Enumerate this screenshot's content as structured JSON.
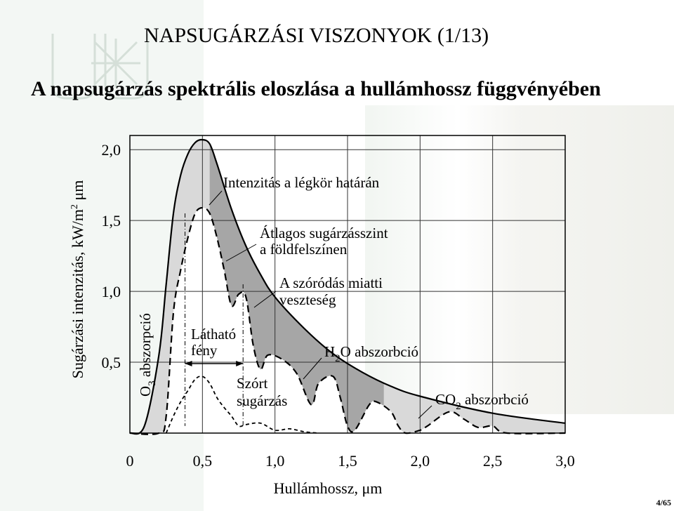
{
  "header": {
    "title": "NAPSUGÁRZÁSI VISZONYOK (1/13)",
    "subtitle": "A napsugárzás spektrális eloszlása a hullámhossz függvényében"
  },
  "footer": {
    "page": "4/65"
  },
  "colors": {
    "loss_fill": "#a6a6a6",
    "ground_fill": "#d9d9d9",
    "grid": "#333333",
    "bg_tint": "#e8efe6"
  },
  "chart_data": {
    "type": "area",
    "xlabel": "Hullámhossz, μm",
    "ylabel_main": "Sugárzási intenzitás, kW/m",
    "ylabel_sup": "2",
    "ylabel_tail": " μm",
    "xlim": [
      0,
      3.0
    ],
    "ylim": [
      0,
      2.1
    ],
    "grid": true,
    "x_ticks": [
      "0",
      "0,5",
      "1,0",
      "1,5",
      "2,0",
      "2,5",
      "3,0"
    ],
    "x_tick_values": [
      0,
      0.5,
      1.0,
      1.5,
      2.0,
      2.5,
      3.0
    ],
    "y_ticks": [
      "0,5",
      "1,0",
      "1,5",
      "2,0"
    ],
    "y_tick_values": [
      0.5,
      1.0,
      1.5,
      2.0
    ],
    "series": [
      {
        "name": "Intenzitás a légkör határán",
        "x": [
          0.0,
          0.1,
          0.2,
          0.25,
          0.3,
          0.35,
          0.4,
          0.45,
          0.5,
          0.55,
          0.6,
          0.7,
          0.8,
          0.9,
          1.0,
          1.2,
          1.4,
          1.6,
          1.8,
          2.0,
          2.5,
          3.0
        ],
        "y": [
          0.0,
          0.05,
          0.55,
          1.05,
          1.55,
          1.82,
          1.97,
          2.05,
          2.07,
          2.04,
          1.9,
          1.58,
          1.32,
          1.12,
          0.96,
          0.74,
          0.56,
          0.43,
          0.33,
          0.26,
          0.14,
          0.07
        ]
      },
      {
        "name": "Átlagos sugárzásszint a földfelszínen",
        "x": [
          0.0,
          0.2,
          0.25,
          0.3,
          0.35,
          0.4,
          0.45,
          0.5,
          0.55,
          0.6,
          0.65,
          0.7,
          0.75,
          0.8,
          0.85,
          0.9,
          0.95,
          1.05,
          1.15,
          1.25,
          1.3,
          1.4,
          1.45,
          1.5,
          1.55,
          1.65,
          1.7,
          1.8,
          1.85,
          1.9,
          2.0,
          2.05,
          2.2,
          2.3,
          2.4,
          2.5,
          2.6,
          3.0
        ],
        "y": [
          0.0,
          0.0,
          0.12,
          0.85,
          1.15,
          1.38,
          1.55,
          1.59,
          1.55,
          1.38,
          1.15,
          0.9,
          0.98,
          0.96,
          0.62,
          0.45,
          0.55,
          0.52,
          0.42,
          0.2,
          0.35,
          0.4,
          0.25,
          0.05,
          0.02,
          0.2,
          0.22,
          0.15,
          0.05,
          0.0,
          0.02,
          0.05,
          0.15,
          0.1,
          0.04,
          0.05,
          0.0,
          0.0
        ]
      },
      {
        "name": "Szórt sugárzás",
        "x": [
          0.25,
          0.3,
          0.35,
          0.4,
          0.45,
          0.5,
          0.55,
          0.6,
          0.65,
          0.7,
          0.75,
          0.8,
          0.9,
          1.0,
          1.1,
          1.2,
          1.3
        ],
        "y": [
          0.0,
          0.12,
          0.22,
          0.3,
          0.38,
          0.4,
          0.35,
          0.25,
          0.18,
          0.12,
          0.05,
          0.06,
          0.07,
          0.02,
          0.03,
          0.01,
          0.0
        ]
      }
    ],
    "annotations": [
      {
        "text": "Intenzitás a légkör határán"
      },
      {
        "text": "Átlagos sugárzásszint"
      },
      {
        "text": "a földfelszínen"
      },
      {
        "text": "A szóródás miatti"
      },
      {
        "text": "veszteség"
      },
      {
        "text": "H",
        "sub": "2",
        "tail": "O abszorbció"
      },
      {
        "text": "CO",
        "sub": "2",
        "tail": " abszorbció"
      },
      {
        "text": "Látható"
      },
      {
        "text": "fény"
      },
      {
        "text": "Szórt"
      },
      {
        "text": "sugárzás"
      },
      {
        "text": "O",
        "sub": "3",
        "tail": " abszorpció"
      }
    ]
  }
}
